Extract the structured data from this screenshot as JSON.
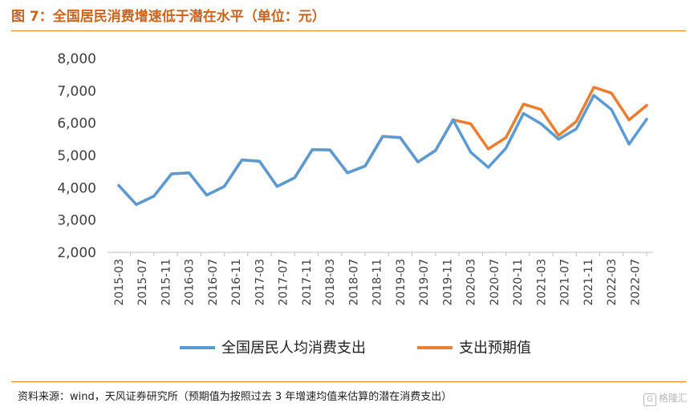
{
  "header": {
    "title": "图 7：全国居民消费增速低于潜在水平（单位：元）"
  },
  "footer": {
    "source": "资料来源：wind，天风证券研究所（预期值为按照过去 3 年增速均值来估算的潜在消费支出）",
    "watermark": "格隆汇"
  },
  "colors": {
    "actual": "#5b9bd5",
    "expected": "#ed7d31",
    "accent": "#e8821e"
  },
  "chart_data": {
    "type": "line",
    "ylim": [
      2000,
      8000
    ],
    "yticks": [
      "8,000",
      "7,000",
      "6,000",
      "5,000",
      "4,000",
      "3,000",
      "2,000"
    ],
    "ytick_values": [
      8000,
      7000,
      6000,
      5000,
      4000,
      3000,
      2000
    ],
    "xtick_labels": [
      "2015-03",
      "2015-07",
      "2015-11",
      "2016-03",
      "2016-07",
      "2016-11",
      "2017-03",
      "2017-07",
      "2017-11",
      "2018-03",
      "2018-07",
      "2018-11",
      "2019-03",
      "2019-07",
      "2019-11",
      "2020-03",
      "2020-07",
      "2020-11",
      "2021-03",
      "2021-07",
      "2021-11",
      "2022-03",
      "2022-07"
    ],
    "x": [
      "2015-03",
      "2015-06",
      "2015-09",
      "2015-12",
      "2016-03",
      "2016-06",
      "2016-09",
      "2016-12",
      "2017-03",
      "2017-06",
      "2017-09",
      "2017-12",
      "2018-03",
      "2018-06",
      "2018-09",
      "2018-12",
      "2019-03",
      "2019-06",
      "2019-09",
      "2019-12",
      "2020-03",
      "2020-06",
      "2020-09",
      "2020-12",
      "2021-03",
      "2021-06",
      "2021-09",
      "2021-12",
      "2022-03",
      "2022-06",
      "2022-09"
    ],
    "series": [
      {
        "name": "全国居民人均消费支出",
        "values": [
          4070,
          3480,
          3740,
          4430,
          4460,
          3770,
          4040,
          4860,
          4820,
          4040,
          4310,
          5180,
          5170,
          4460,
          4670,
          5590,
          5550,
          4800,
          5150,
          6100,
          5100,
          4630,
          5220,
          6300,
          5980,
          5500,
          5820,
          6860,
          6420,
          5350,
          6120
        ]
      },
      {
        "name": "支出预期值",
        "values": [
          4070,
          3480,
          3740,
          4430,
          4460,
          3770,
          4040,
          4860,
          4820,
          4040,
          4310,
          5180,
          5170,
          4460,
          4670,
          5590,
          5550,
          4800,
          5150,
          6100,
          5980,
          5200,
          5550,
          6590,
          6420,
          5620,
          6050,
          7110,
          6930,
          6100,
          6550
        ]
      }
    ],
    "legend_position": "bottom",
    "grid": false
  }
}
